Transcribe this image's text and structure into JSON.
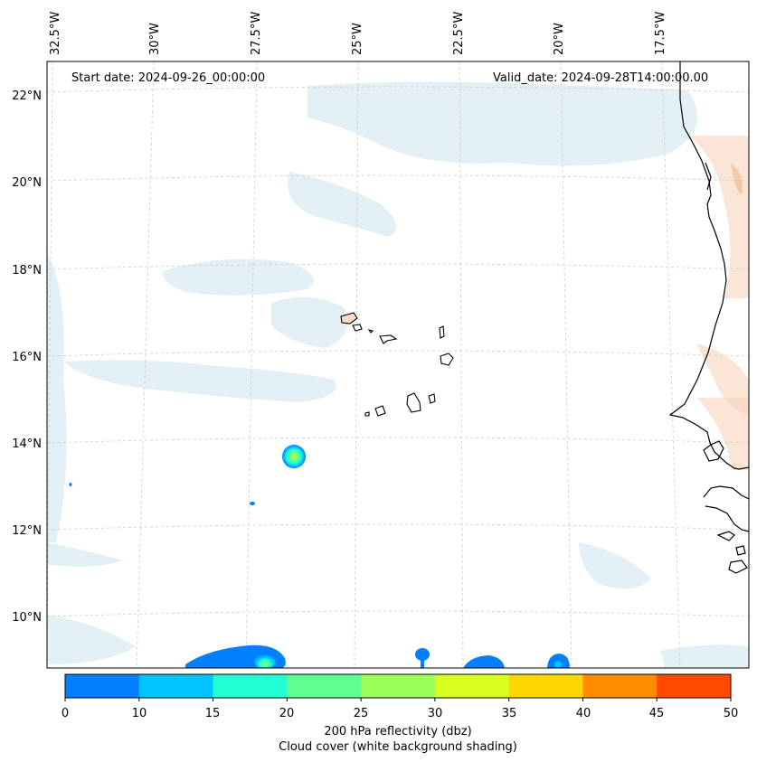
{
  "header": {
    "start_date": "Start date: 2024-09-26_00:00:00",
    "valid_date": "Valid_date: 2024-09-28T14:00:00.00"
  },
  "axes": {
    "lon_labels": [
      "32.5°W",
      "30°W",
      "27.5°W",
      "25°W",
      "22.5°W",
      "20°W",
      "17.5°W"
    ],
    "lat_labels": [
      "22°N",
      "20°N",
      "18°N",
      "16°N",
      "14°N",
      "12°N",
      "10°N"
    ]
  },
  "colorbar": {
    "ticks": [
      "0",
      "10",
      "15",
      "20",
      "25",
      "30",
      "35",
      "40",
      "45",
      "50"
    ],
    "colors": [
      "#0080ff",
      "#00c4ff",
      "#22ffd2",
      "#60ff90",
      "#9cff5a",
      "#d8ff20",
      "#ffd700",
      "#ff8c00",
      "#ff4a00"
    ],
    "label": "200 hPa reflectivity (dbz)",
    "sublabel": "Cloud cover (white background shading)"
  },
  "map": {
    "coast_color": "#000000",
    "cloud_color": "#c6e2ec",
    "land_warm_color": "#f6d4bc",
    "grid_color": "#cccccc"
  }
}
